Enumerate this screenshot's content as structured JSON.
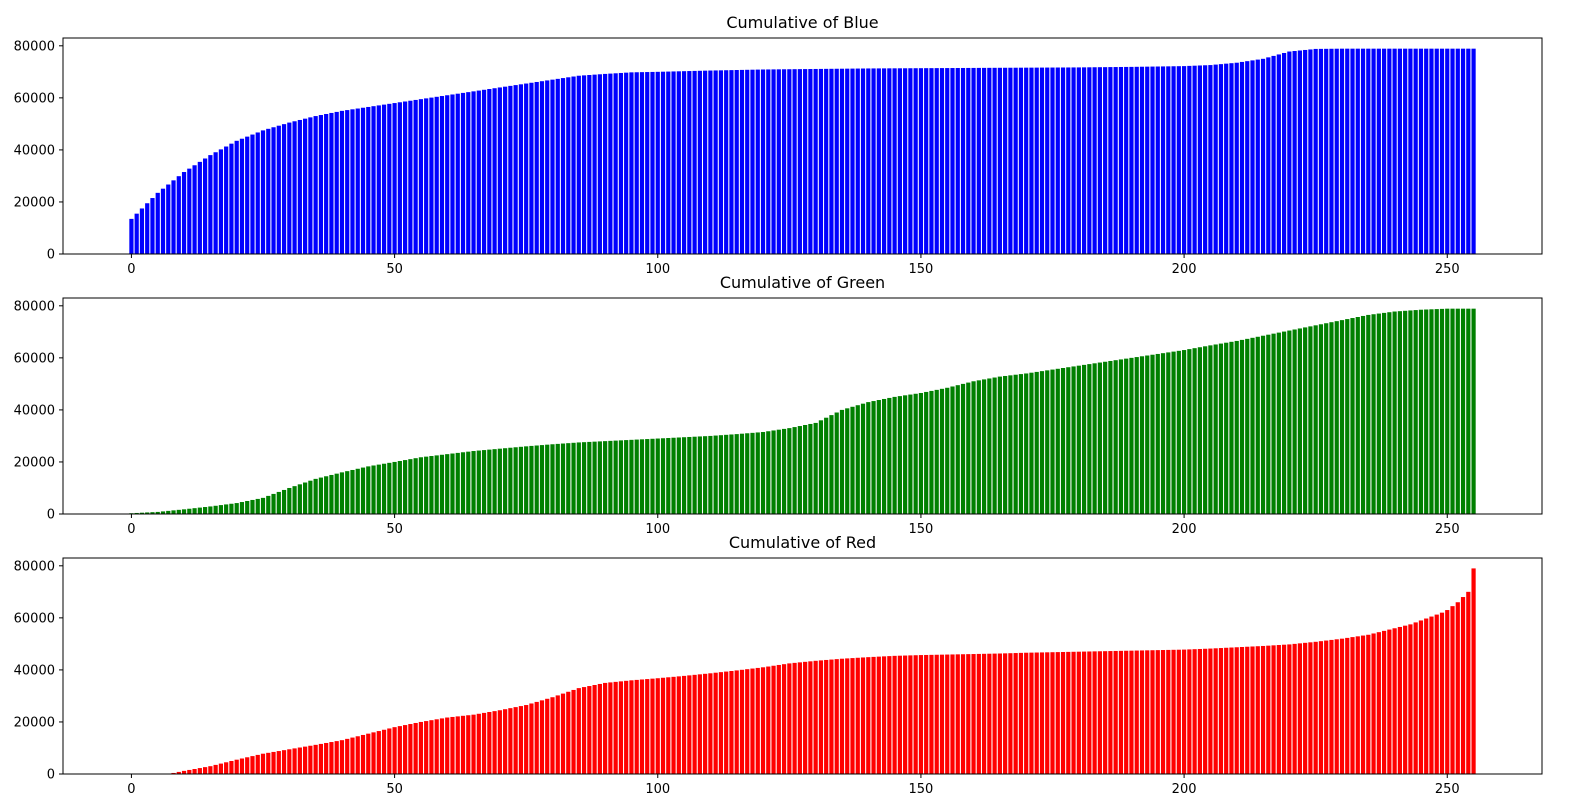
{
  "chart_data": [
    {
      "type": "bar",
      "title": "Cumulative of Blue",
      "xlabel": "",
      "ylabel": "",
      "color": "#0000ff",
      "xlim": [
        -13,
        268
      ],
      "ylim": [
        0,
        83000
      ],
      "xticks": [
        0,
        50,
        100,
        150,
        200,
        250
      ],
      "yticks": [
        0,
        20000,
        40000,
        60000,
        80000
      ],
      "grid": false,
      "x": [
        0,
        5,
        10,
        15,
        20,
        25,
        30,
        35,
        40,
        45,
        50,
        55,
        60,
        65,
        70,
        75,
        80,
        85,
        90,
        95,
        100,
        110,
        120,
        130,
        140,
        150,
        160,
        170,
        180,
        190,
        200,
        205,
        210,
        215,
        220,
        225,
        230,
        240,
        250,
        255
      ],
      "values": [
        13500,
        23500,
        31500,
        38000,
        43500,
        47500,
        50500,
        53000,
        55000,
        56500,
        58000,
        59500,
        61000,
        62500,
        64000,
        65500,
        67000,
        68500,
        69200,
        69800,
        70000,
        70500,
        70900,
        71100,
        71300,
        71400,
        71500,
        71600,
        71700,
        71900,
        72200,
        72600,
        73500,
        75000,
        77800,
        78800,
        78900,
        78900,
        78900,
        78900
      ]
    },
    {
      "type": "bar",
      "title": "Cumulative of Green",
      "xlabel": "",
      "ylabel": "",
      "color": "#008000",
      "xlim": [
        -13,
        268
      ],
      "ylim": [
        0,
        83000
      ],
      "xticks": [
        0,
        50,
        100,
        150,
        200,
        250
      ],
      "yticks": [
        0,
        20000,
        40000,
        60000,
        80000
      ],
      "grid": false,
      "x": [
        0,
        5,
        10,
        15,
        20,
        25,
        30,
        35,
        40,
        45,
        50,
        55,
        60,
        65,
        70,
        75,
        80,
        85,
        90,
        95,
        100,
        105,
        110,
        115,
        120,
        125,
        130,
        135,
        140,
        145,
        150,
        155,
        160,
        165,
        170,
        175,
        180,
        185,
        190,
        195,
        200,
        205,
        210,
        215,
        220,
        225,
        230,
        235,
        240,
        245,
        250,
        255
      ],
      "values": [
        300,
        800,
        1800,
        2900,
        4200,
        6200,
        10000,
        13500,
        16000,
        18300,
        20000,
        21800,
        23000,
        24200,
        25100,
        26000,
        26800,
        27500,
        28000,
        28500,
        29000,
        29500,
        30000,
        30700,
        31500,
        33000,
        35000,
        40000,
        43000,
        45000,
        46500,
        48500,
        51000,
        52800,
        54000,
        55500,
        57000,
        58500,
        60000,
        61500,
        63000,
        64800,
        66500,
        68500,
        70500,
        72500,
        74500,
        76500,
        77800,
        78500,
        78900,
        78900
      ]
    },
    {
      "type": "bar",
      "title": "Cumulative of Red",
      "xlabel": "",
      "ylabel": "",
      "color": "#ff0000",
      "xlim": [
        -13,
        268
      ],
      "ylim": [
        0,
        83000
      ],
      "xticks": [
        0,
        50,
        100,
        150,
        200,
        250
      ],
      "yticks": [
        0,
        20000,
        40000,
        60000,
        80000
      ],
      "grid": false,
      "x": [
        0,
        5,
        7,
        10,
        15,
        20,
        25,
        30,
        35,
        40,
        45,
        50,
        55,
        60,
        65,
        70,
        75,
        80,
        85,
        90,
        95,
        100,
        105,
        110,
        115,
        120,
        125,
        130,
        135,
        140,
        145,
        150,
        155,
        160,
        165,
        170,
        175,
        180,
        185,
        190,
        195,
        200,
        205,
        210,
        215,
        220,
        225,
        230,
        235,
        240,
        243,
        245,
        247,
        249,
        250,
        251,
        252,
        253,
        254,
        255
      ],
      "values": [
        0,
        0,
        0,
        1200,
        3000,
        5500,
        7800,
        9500,
        11200,
        13000,
        15500,
        18000,
        20000,
        21700,
        22800,
        24500,
        26500,
        29500,
        33000,
        35000,
        36000,
        36800,
        37700,
        38700,
        39800,
        41000,
        42500,
        43500,
        44300,
        44900,
        45400,
        45700,
        45900,
        46100,
        46300,
        46600,
        46800,
        47000,
        47200,
        47400,
        47600,
        47800,
        48200,
        48700,
        49200,
        49800,
        50800,
        52000,
        53500,
        56000,
        57500,
        59000,
        60500,
        62000,
        63000,
        64500,
        66000,
        68000,
        70000,
        79000
      ]
    }
  ]
}
